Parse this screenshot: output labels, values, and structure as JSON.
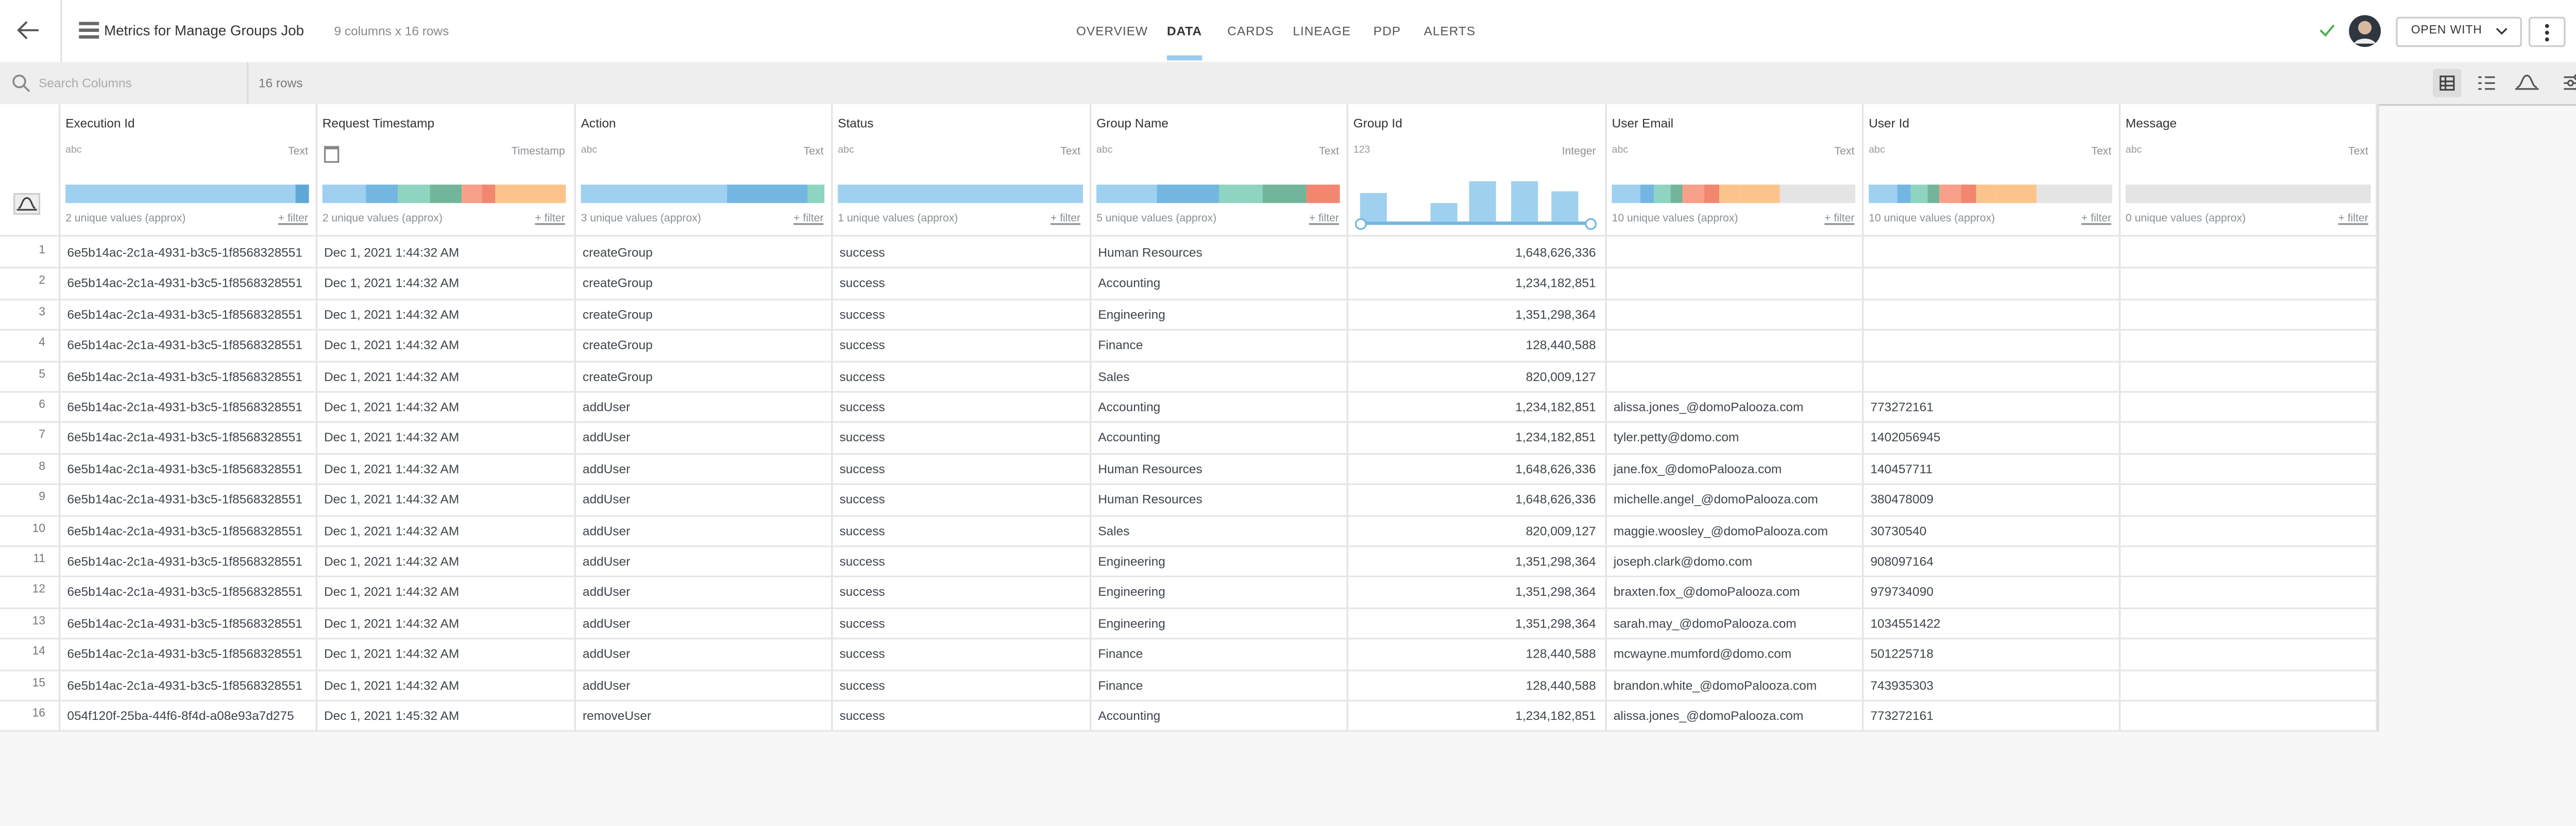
{
  "header": {
    "title": "Metrics for Manage Groups Job",
    "subtitle": "9 columns x 16 rows",
    "tabs": [
      "OVERVIEW",
      "DATA",
      "CARDS",
      "LINEAGE",
      "PDP",
      "ALERTS"
    ],
    "active_tab": "DATA",
    "open_with": "OPEN WITH"
  },
  "toolbar": {
    "search_placeholder": "Search Columns",
    "row_count": "16 rows"
  },
  "table": {
    "filter_label": "+ filter",
    "columns": [
      {
        "name": "Execution Id",
        "type_icon": "abc",
        "type": "Text",
        "summary": "2 unique values (approx)"
      },
      {
        "name": "Request Timestamp",
        "type_icon": null,
        "type": "Timestamp",
        "summary": "2 unique values (approx)"
      },
      {
        "name": "Action",
        "type_icon": "abc",
        "type": "Text",
        "summary": "3 unique values (approx)"
      },
      {
        "name": "Status",
        "type_icon": "abc",
        "type": "Text",
        "summary": "1 unique values (approx)"
      },
      {
        "name": "Group Name",
        "type_icon": "abc",
        "type": "Text",
        "summary": "5 unique values (approx)"
      },
      {
        "name": "Group Id",
        "type_icon": "123",
        "type": "Integer",
        "summary": null
      },
      {
        "name": "User Email",
        "type_icon": "abc",
        "type": "Text",
        "summary": "10 unique values (approx)"
      },
      {
        "name": "User Id",
        "type_icon": "abc",
        "type": "Text",
        "summary": "10 unique values (approx)"
      },
      {
        "name": "Message",
        "type_icon": "abc",
        "type": "Text",
        "summary": "0 unique values (approx)"
      }
    ],
    "rows": [
      {
        "number": 1,
        "cells": [
          "6e5b14ac-2c1a-4931-b3c5-1f8568328551",
          "Dec 1, 2021 1:44:32 AM",
          "createGroup",
          "success",
          "Human Resources",
          "1,648,626,336",
          null,
          null,
          null
        ]
      },
      {
        "number": 2,
        "cells": [
          "6e5b14ac-2c1a-4931-b3c5-1f8568328551",
          "Dec 1, 2021 1:44:32 AM",
          "createGroup",
          "success",
          "Accounting",
          "1,234,182,851",
          null,
          null,
          null
        ]
      },
      {
        "number": 3,
        "cells": [
          "6e5b14ac-2c1a-4931-b3c5-1f8568328551",
          "Dec 1, 2021 1:44:32 AM",
          "createGroup",
          "success",
          "Engineering",
          "1,351,298,364",
          null,
          null,
          null
        ]
      },
      {
        "number": 4,
        "cells": [
          "6e5b14ac-2c1a-4931-b3c5-1f8568328551",
          "Dec 1, 2021 1:44:32 AM",
          "createGroup",
          "success",
          "Finance",
          "128,440,588",
          null,
          null,
          null
        ]
      },
      {
        "number": 5,
        "cells": [
          "6e5b14ac-2c1a-4931-b3c5-1f8568328551",
          "Dec 1, 2021 1:44:32 AM",
          "createGroup",
          "success",
          "Sales",
          "820,009,127",
          null,
          null,
          null
        ]
      },
      {
        "number": 6,
        "cells": [
          "6e5b14ac-2c1a-4931-b3c5-1f8568328551",
          "Dec 1, 2021 1:44:32 AM",
          "addUser",
          "success",
          "Accounting",
          "1,234,182,851",
          "alissa.jones_@domoPalooza.com",
          "773272161",
          null
        ]
      },
      {
        "number": 7,
        "cells": [
          "6e5b14ac-2c1a-4931-b3c5-1f8568328551",
          "Dec 1, 2021 1:44:32 AM",
          "addUser",
          "success",
          "Accounting",
          "1,234,182,851",
          "tyler.petty@domo.com",
          "1402056945",
          null
        ]
      },
      {
        "number": 8,
        "cells": [
          "6e5b14ac-2c1a-4931-b3c5-1f8568328551",
          "Dec 1, 2021 1:44:32 AM",
          "addUser",
          "success",
          "Human Resources",
          "1,648,626,336",
          "jane.fox_@domoPalooza.com",
          "140457711",
          null
        ]
      },
      {
        "number": 9,
        "cells": [
          "6e5b14ac-2c1a-4931-b3c5-1f8568328551",
          "Dec 1, 2021 1:44:32 AM",
          "addUser",
          "success",
          "Human Resources",
          "1,648,626,336",
          "michelle.angel_@domoPalooza.com",
          "380478009",
          null
        ]
      },
      {
        "number": 10,
        "cells": [
          "6e5b14ac-2c1a-4931-b3c5-1f8568328551",
          "Dec 1, 2021 1:44:32 AM",
          "addUser",
          "success",
          "Sales",
          "820,009,127",
          "maggie.woosley_@domoPalooza.com",
          "30730540",
          null
        ]
      },
      {
        "number": 11,
        "cells": [
          "6e5b14ac-2c1a-4931-b3c5-1f8568328551",
          "Dec 1, 2021 1:44:32 AM",
          "addUser",
          "success",
          "Engineering",
          "1,351,298,364",
          "joseph.clark@domo.com",
          "908097164",
          null
        ]
      },
      {
        "number": 12,
        "cells": [
          "6e5b14ac-2c1a-4931-b3c5-1f8568328551",
          "Dec 1, 2021 1:44:32 AM",
          "addUser",
          "success",
          "Engineering",
          "1,351,298,364",
          "braxten.fox_@domoPalooza.com",
          "979734090",
          null
        ]
      },
      {
        "number": 13,
        "cells": [
          "6e5b14ac-2c1a-4931-b3c5-1f8568328551",
          "Dec 1, 2021 1:44:32 AM",
          "addUser",
          "success",
          "Engineering",
          "1,351,298,364",
          "sarah.may_@domoPalooza.com",
          "1034551422",
          null
        ]
      },
      {
        "number": 14,
        "cells": [
          "6e5b14ac-2c1a-4931-b3c5-1f8568328551",
          "Dec 1, 2021 1:44:32 AM",
          "addUser",
          "success",
          "Finance",
          "128,440,588",
          "mcwayne.mumford@domo.com",
          "501225718",
          null
        ]
      },
      {
        "number": 15,
        "cells": [
          "6e5b14ac-2c1a-4931-b3c5-1f8568328551",
          "Dec 1, 2021 1:44:32 AM",
          "addUser",
          "success",
          "Finance",
          "128,440,588",
          "brandon.white_@domoPalooza.com",
          "743935303",
          null
        ]
      },
      {
        "number": 16,
        "cells": [
          "054f120f-25ba-44f6-8f4d-a08e93a7d275",
          "Dec 1, 2021 1:45:32 AM",
          "removeUser",
          "success",
          "Accounting",
          "1,234,182,851",
          "alissa.jones_@domoPalooza.com",
          "773272161",
          null
        ]
      }
    ]
  }
}
